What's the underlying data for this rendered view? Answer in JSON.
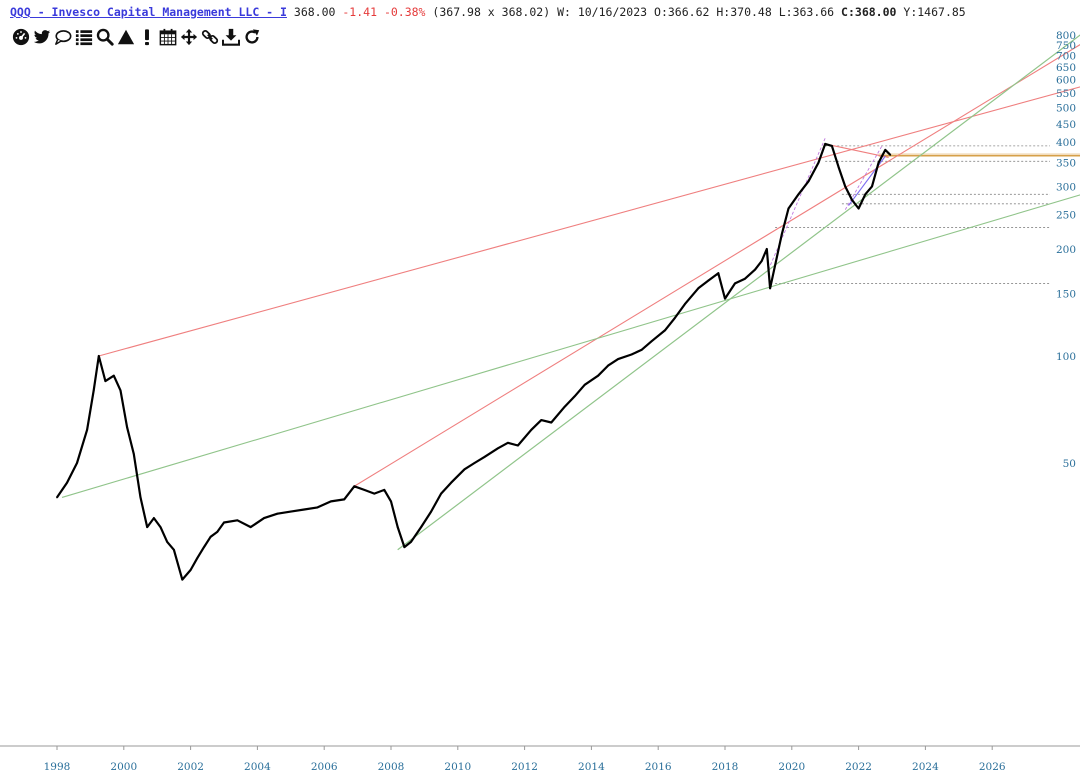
{
  "header": {
    "symbol": "QQQ - Invesco Capital Management LLC - I",
    "last": "368.00",
    "change": "-1.41",
    "change_pct": "-0.38%",
    "bid_ask": "(367.98 x 368.02)",
    "period": "W: 10/16/2023",
    "open_label": "O:",
    "open": "366.62",
    "high_label": "H:",
    "high": "370.48",
    "low_label": "L:",
    "low": "363.66",
    "close_label": "C:",
    "close": "368.00",
    "y_label": "Y:",
    "y_value": "1467.85"
  },
  "toolbar": [
    {
      "name": "dashboard-icon"
    },
    {
      "name": "twitter-icon"
    },
    {
      "name": "comment-icon"
    },
    {
      "name": "list-icon"
    },
    {
      "name": "search-icon"
    },
    {
      "name": "triangle-up-icon"
    },
    {
      "name": "exclamation-icon"
    },
    {
      "name": "calendar-icon"
    },
    {
      "name": "move-icon"
    },
    {
      "name": "link-icon"
    },
    {
      "name": "download-icon"
    },
    {
      "name": "refresh-icon"
    }
  ],
  "chart_data": {
    "type": "line",
    "scale": "log",
    "x_ticks": [
      "1998",
      "2000",
      "2002",
      "2004",
      "2006",
      "2008",
      "2010",
      "2012",
      "2014",
      "2016",
      "2018",
      "2020",
      "2022",
      "2024",
      "2026"
    ],
    "y_ticks": [
      "50",
      "100",
      "150",
      "200",
      "250",
      "300",
      "350",
      "400",
      "450",
      "500",
      "550",
      "600",
      "650",
      "700",
      "750",
      "800"
    ],
    "ylim": [
      26,
      800
    ],
    "series": [
      {
        "color": "#000000",
        "points": [
          [
            "1998.0",
            40
          ],
          [
            "1998.3",
            44
          ],
          [
            "1998.6",
            50
          ],
          [
            "1998.9",
            62
          ],
          [
            "1999.1",
            80
          ],
          [
            "1999.25",
            100
          ],
          [
            "1999.45",
            85
          ],
          [
            "1999.7",
            88
          ],
          [
            "1999.9",
            80
          ],
          [
            "2000.1",
            63
          ],
          [
            "2000.3",
            53
          ],
          [
            "2000.5",
            40
          ],
          [
            "2000.7",
            33
          ],
          [
            "2000.9",
            35
          ],
          [
            "2001.1",
            33
          ],
          [
            "2001.3",
            30
          ],
          [
            "2001.5",
            28.5
          ],
          [
            "2001.75",
            23.5
          ],
          [
            "2002.0",
            25
          ],
          [
            "2002.2",
            27
          ],
          [
            "2002.4",
            29
          ],
          [
            "2002.6",
            31
          ],
          [
            "2002.8",
            32
          ],
          [
            "2003.0",
            34
          ],
          [
            "2003.4",
            34.5
          ],
          [
            "2003.8",
            33
          ],
          [
            "2004.2",
            35
          ],
          [
            "2004.6",
            36
          ],
          [
            "2005.0",
            36.5
          ],
          [
            "2005.4",
            37
          ],
          [
            "2005.8",
            37.5
          ],
          [
            "2006.2",
            39
          ],
          [
            "2006.6",
            39.5
          ],
          [
            "2006.9",
            43
          ],
          [
            "2007.2",
            42
          ],
          [
            "2007.5",
            41
          ],
          [
            "2007.8",
            42
          ],
          [
            "2008.0",
            39
          ],
          [
            "2008.2",
            33
          ],
          [
            "2008.4",
            29
          ],
          [
            "2008.6",
            30
          ],
          [
            "2008.9",
            33
          ],
          [
            "2009.2",
            36.5
          ],
          [
            "2009.5",
            41
          ],
          [
            "2009.8",
            44
          ],
          [
            "2010.2",
            48
          ],
          [
            "2010.5",
            50
          ],
          [
            "2010.8",
            52
          ],
          [
            "2011.2",
            55
          ],
          [
            "2011.5",
            57
          ],
          [
            "2011.8",
            56
          ],
          [
            "2012.2",
            62
          ],
          [
            "2012.5",
            66
          ],
          [
            "2012.8",
            65
          ],
          [
            "2013.2",
            72
          ],
          [
            "2013.5",
            77
          ],
          [
            "2013.8",
            83
          ],
          [
            "2014.2",
            88
          ],
          [
            "2014.5",
            94
          ],
          [
            "2014.8",
            98
          ],
          [
            "2015.2",
            101
          ],
          [
            "2015.5",
            104
          ],
          [
            "2015.8",
            110
          ],
          [
            "2016.2",
            118
          ],
          [
            "2016.5",
            128
          ],
          [
            "2016.8",
            140
          ],
          [
            "2017.2",
            155
          ],
          [
            "2017.5",
            163
          ],
          [
            "2017.8",
            171
          ],
          [
            "2018.0",
            145
          ],
          [
            "2018.3",
            160
          ],
          [
            "2018.6",
            165
          ],
          [
            "2018.9",
            175
          ],
          [
            "2019.1",
            185
          ],
          [
            "2019.25",
            200
          ],
          [
            "2019.35",
            155
          ],
          [
            "2019.5",
            180
          ],
          [
            "2019.7",
            220
          ],
          [
            "2019.9",
            260
          ],
          [
            "2020.2",
            285
          ],
          [
            "2020.5",
            310
          ],
          [
            "2020.8",
            350
          ],
          [
            "2021.0",
            395
          ],
          [
            "2021.2",
            390
          ],
          [
            "2021.4",
            340
          ],
          [
            "2021.6",
            300
          ],
          [
            "2021.8",
            275
          ],
          [
            "2022.0",
            260
          ],
          [
            "2022.2",
            285
          ],
          [
            "2022.4",
            300
          ],
          [
            "2022.6",
            350
          ],
          [
            "2022.8",
            380
          ],
          [
            "2022.95",
            368
          ]
        ]
      }
    ]
  }
}
